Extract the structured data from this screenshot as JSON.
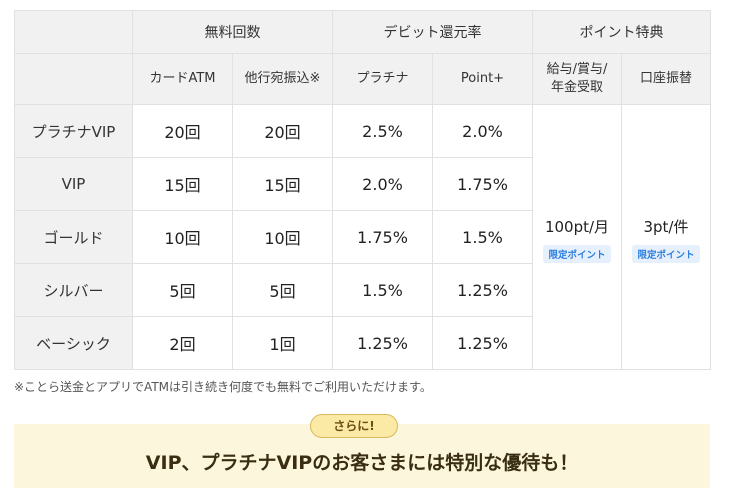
{
  "table": {
    "group_headers": [
      "無料回数",
      "デビット還元率",
      "ポイント特典"
    ],
    "sub_headers": [
      "カードATM",
      "他行宛振込※",
      "プラチナ",
      "Point+",
      "給与/賞与/",
      "年金受取",
      "口座振替"
    ],
    "rows": [
      {
        "label": "プラチナVIP",
        "atm": "20回",
        "transfer": "20回",
        "platinum": "2.5%",
        "pointplus": "2.0%"
      },
      {
        "label": "VIP",
        "atm": "15回",
        "transfer": "15回",
        "platinum": "2.0%",
        "pointplus": "1.75%"
      },
      {
        "label": "ゴールド",
        "atm": "10回",
        "transfer": "10回",
        "platinum": "1.75%",
        "pointplus": "1.5%"
      },
      {
        "label": "シルバー",
        "atm": "5回",
        "transfer": "5回",
        "platinum": "1.5%",
        "pointplus": "1.25%"
      },
      {
        "label": "ベーシック",
        "atm": "2回",
        "transfer": "1回",
        "platinum": "1.25%",
        "pointplus": "1.25%"
      }
    ],
    "salary_points": "100pt/月",
    "debit_points": "3pt/件",
    "limited_badge": "限定ポイント"
  },
  "note": "※ことら送金とアプリでATMは引き続き何度でも無料でご利用いただけます。",
  "promo": {
    "tag": "さらに!",
    "text": "VIP、プラチナVIPのお客さまには特別な優待も！"
  }
}
